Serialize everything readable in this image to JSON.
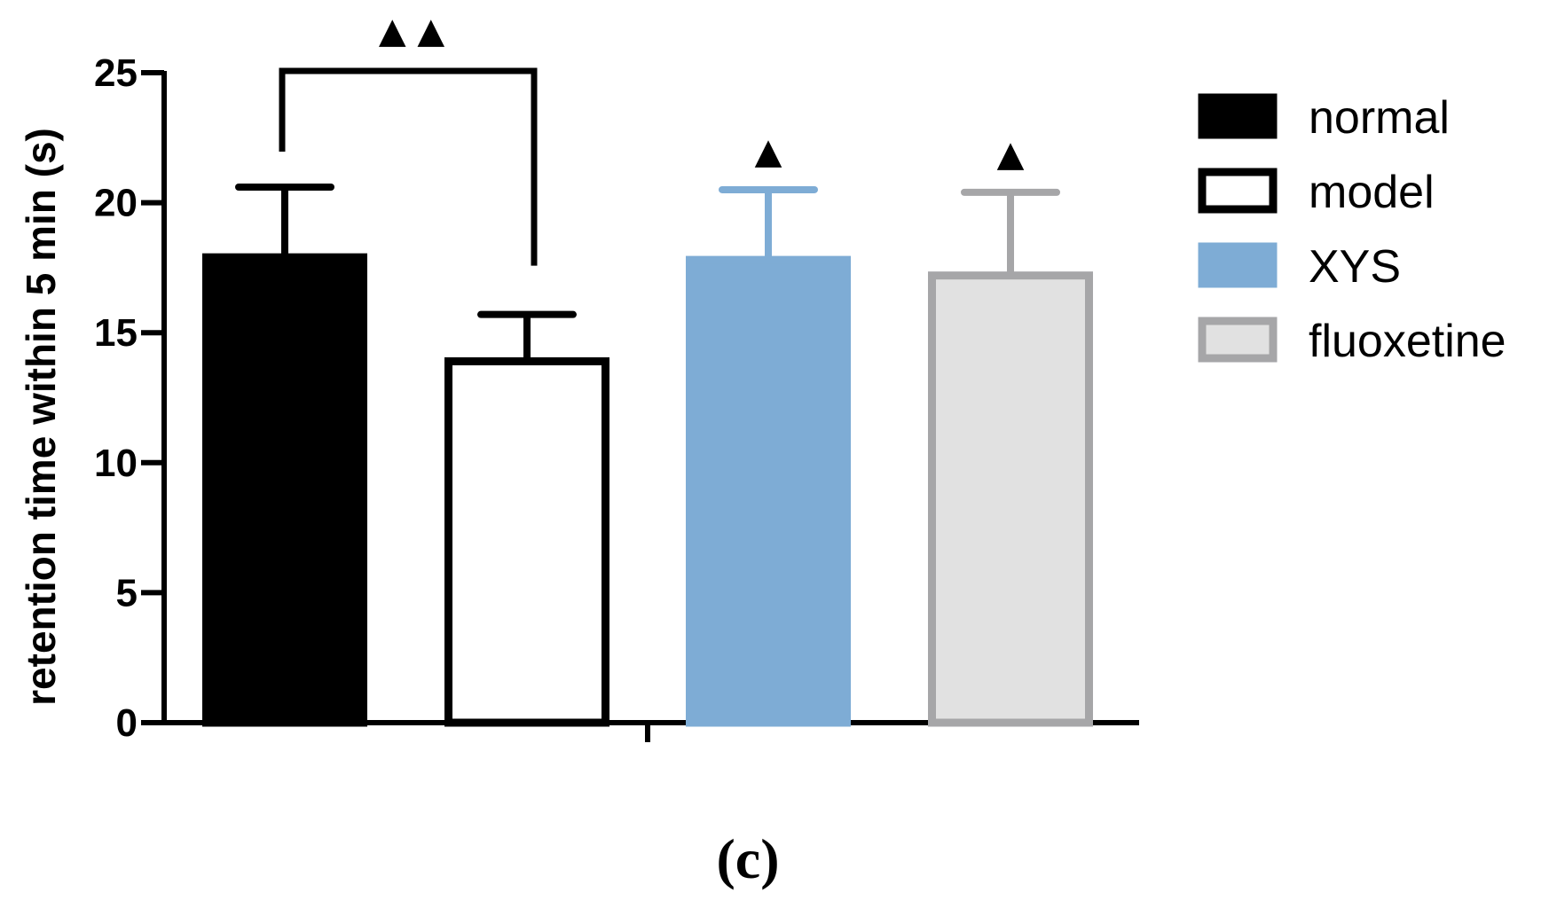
{
  "chart_data": {
    "type": "bar",
    "ylabel": "retention time within 5 min (s)",
    "ylim": [
      0,
      25
    ],
    "yticks": [
      "0",
      "5",
      "10",
      "15",
      "20",
      "25"
    ],
    "grid": false,
    "legend_position": "right",
    "series": [
      {
        "name": "normal",
        "value": 17.9,
        "error": 2.7,
        "fill": "#000000",
        "stroke": "#000000",
        "annotation": ""
      },
      {
        "name": "model",
        "value": 13.9,
        "error": 1.8,
        "fill": "#ffffff",
        "stroke": "#000000",
        "annotation": ""
      },
      {
        "name": "XYS",
        "value": 17.8,
        "error": 2.7,
        "fill": "#7eacd5",
        "stroke": "#7eacd5",
        "annotation": "▲"
      },
      {
        "name": "fluoxetine",
        "value": 17.2,
        "error": 3.2,
        "fill": "#e1e1e1",
        "stroke": "#a6a6a8",
        "annotation": "▲"
      }
    ],
    "significance_bracket": {
      "from": "normal",
      "to": "model",
      "label": "▲ ▲"
    }
  },
  "panel_label": "(c)"
}
